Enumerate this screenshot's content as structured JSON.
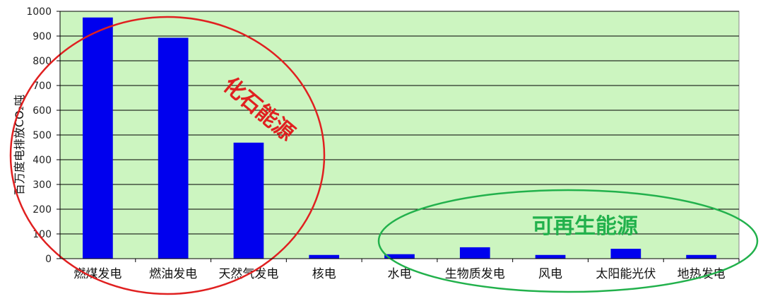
{
  "chart_data": {
    "type": "bar",
    "ylabel": "百万度电排放CO₂吨",
    "ylim": [
      0,
      1000
    ],
    "yticks": [
      0,
      100,
      200,
      300,
      400,
      500,
      600,
      700,
      800,
      900,
      1000
    ],
    "grid": true,
    "categories": [
      "燃煤发电",
      "燃油发电",
      "天然气发电",
      "核电",
      "水电",
      "生物质发电",
      "风电",
      "太阳能光伏",
      "地热发电"
    ],
    "values": [
      975,
      893,
      469,
      15,
      18,
      46,
      15,
      40,
      15
    ],
    "colors": {
      "bar": "#0000ee",
      "plot_background": "#ccf5c0",
      "grid": "#000000",
      "fossil_circle": "#e02020",
      "renewable_circle": "#22b14c"
    },
    "annotations": {
      "fossil": "化石能源",
      "renewable": "可再生能源"
    }
  }
}
